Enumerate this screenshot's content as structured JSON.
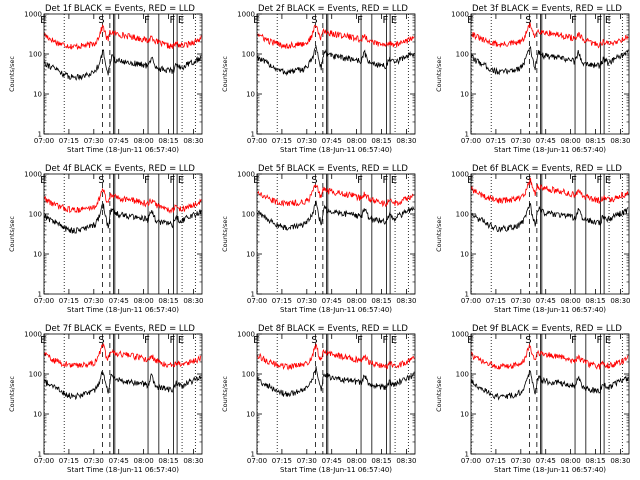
{
  "chart_data": {
    "type": "line",
    "shared": {
      "ylabel": "Counts/sec",
      "xlabel": "Start Time (18-Jun-11 06:57:40)",
      "x_ticks": [
        "07:00",
        "07:15",
        "07:30",
        "07:45",
        "08:00",
        "08:15",
        "08:30"
      ],
      "x_tick_minutes": [
        2.33,
        17.33,
        32.33,
        47.33,
        62.33,
        77.33,
        92.33
      ],
      "x_range_minutes": [
        2.33,
        97.5
      ],
      "y_ticks": [
        "1",
        "10",
        "100",
        "1000"
      ],
      "y_scale": "log",
      "ylim": [
        1,
        1000
      ],
      "series_colors": {
        "events": "#000000",
        "lld": "#ff0000"
      },
      "markers": [
        {
          "label": "E",
          "x": 2.5,
          "style": "dotted"
        },
        {
          "label": "",
          "x": 14.5,
          "style": "dotted"
        },
        {
          "label": "S",
          "x": 37.5,
          "style": "dashed"
        },
        {
          "label": "",
          "x": 42.0,
          "style": "dashed"
        },
        {
          "label": "",
          "x": 44.2,
          "style": "solid"
        },
        {
          "label": "",
          "x": 45.0,
          "style": "solid"
        },
        {
          "label": "F",
          "x": 65.0,
          "style": "solid"
        },
        {
          "label": "",
          "x": 71.5,
          "style": "solid"
        },
        {
          "label": "F",
          "x": 80.3,
          "style": "solid"
        },
        {
          "label": "",
          "x": 82.5,
          "style": "solid"
        },
        {
          "label": "E",
          "x": 85.5,
          "style": "dotted"
        },
        {
          "label": "",
          "x": 93.5,
          "style": "dotted"
        }
      ],
      "profile_minutes": [
        2,
        5,
        10,
        15,
        20,
        25,
        30,
        33,
        35,
        37,
        38,
        39,
        40,
        41,
        42,
        43,
        45,
        50,
        55,
        60,
        63,
        65,
        67,
        70,
        75,
        80,
        82,
        85,
        88,
        90,
        95,
        97
      ],
      "events_profile": [
        90,
        70,
        55,
        40,
        35,
        38,
        42,
        50,
        70,
        120,
        160,
        90,
        60,
        45,
        80,
        120,
        95,
        85,
        80,
        75,
        70,
        65,
        110,
        60,
        55,
        50,
        75,
        60,
        70,
        80,
        95,
        110
      ],
      "lld_profile": [
        380,
        300,
        230,
        200,
        180,
        190,
        200,
        220,
        300,
        500,
        600,
        420,
        300,
        280,
        400,
        420,
        380,
        350,
        320,
        290,
        270,
        250,
        320,
        240,
        200,
        180,
        220,
        190,
        200,
        220,
        260,
        300
      ]
    },
    "panels": [
      {
        "title": "Det 1f BLACK = Events, RED = LLD",
        "events_scale": 0.75,
        "lld_scale": 0.85
      },
      {
        "title": "Det 2f BLACK = Events, RED = LLD",
        "events_scale": 1.0,
        "lld_scale": 0.9
      },
      {
        "title": "Det 3f BLACK = Events, RED = LLD",
        "events_scale": 1.0,
        "lld_scale": 0.95
      },
      {
        "title": "Det 4f BLACK = Events, RED = LLD",
        "events_scale": 1.1,
        "lld_scale": 0.7
      },
      {
        "title": "Det 5f BLACK = Events, RED = LLD",
        "events_scale": 1.3,
        "lld_scale": 1.0
      },
      {
        "title": "Det 6f BLACK = Events, RED = LLD",
        "events_scale": 1.2,
        "lld_scale": 1.2
      },
      {
        "title": "Det 7f BLACK = Events, RED = LLD",
        "events_scale": 0.8,
        "lld_scale": 0.9
      },
      {
        "title": "Det 8f BLACK = Events, RED = LLD",
        "events_scale": 0.9,
        "lld_scale": 0.85
      },
      {
        "title": "Det 9f BLACK = Events, RED = LLD",
        "events_scale": 0.75,
        "lld_scale": 0.85
      }
    ]
  }
}
